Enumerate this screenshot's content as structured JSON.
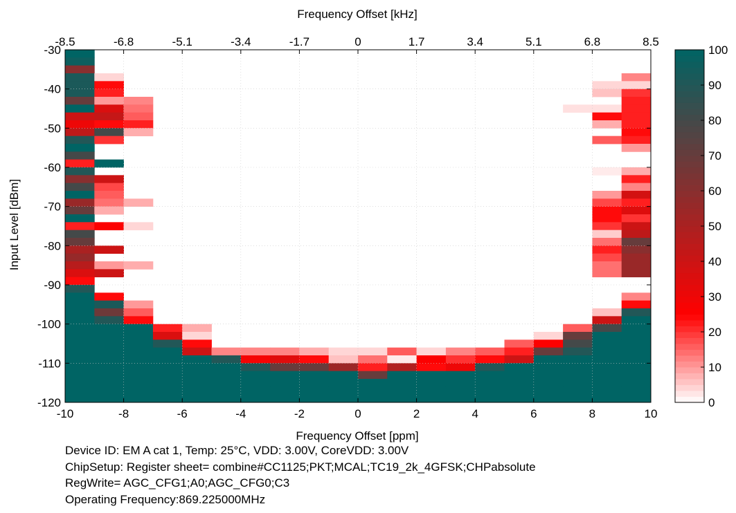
{
  "chart_data": {
    "type": "heatmap",
    "title": "",
    "xlabel": "Frequency Offset [ppm]",
    "x2label": "Frequency Offset [kHz]",
    "ylabel": "Input Level [dBm]",
    "xlim": [
      -10,
      10
    ],
    "ylim": [
      -120,
      -30
    ],
    "x_ticks": [
      -10,
      -8,
      -6,
      -4,
      -2,
      0,
      2,
      4,
      6,
      8,
      10
    ],
    "x2_ticks": [
      "-8.5",
      "-6.8",
      "-5.1",
      "-3.4",
      "-1.7",
      "0",
      "1.7",
      "3.4",
      "5.1",
      "6.8",
      "8.5"
    ],
    "y_ticks": [
      -30,
      -40,
      -50,
      -60,
      -70,
      -80,
      -90,
      -100,
      -110,
      -120
    ],
    "colorbar": {
      "min": 0,
      "max": 100,
      "ticks": [
        0,
        10,
        20,
        30,
        40,
        50,
        60,
        70,
        80,
        90,
        100
      ]
    },
    "x_bins": [
      -9.5,
      -8.5,
      -7.5,
      -6.5,
      -5.5,
      -4.5,
      -3.5,
      -2.5,
      -1.5,
      -0.5,
      0.5,
      1.5,
      2.5,
      3.5,
      4.5,
      5.5,
      6.5,
      7.5,
      8.5,
      9.5
    ],
    "y_bin_top": -30,
    "y_bin_step": 2,
    "z": [
      [
        100,
        0,
        0,
        0,
        0,
        0,
        0,
        0,
        0,
        0,
        0,
        0,
        0,
        0,
        0,
        0,
        0,
        0,
        0,
        0
      ],
      [
        96,
        0,
        0,
        0,
        0,
        0,
        0,
        0,
        0,
        0,
        0,
        0,
        0,
        0,
        0,
        0,
        0,
        0,
        0,
        0
      ],
      [
        60,
        0,
        0,
        0,
        0,
        0,
        0,
        0,
        0,
        0,
        0,
        0,
        0,
        0,
        0,
        0,
        0,
        0,
        0,
        0
      ],
      [
        92,
        4,
        0,
        0,
        0,
        0,
        0,
        0,
        0,
        0,
        0,
        0,
        0,
        0,
        0,
        0,
        0,
        0,
        0,
        12
      ],
      [
        92,
        24,
        0,
        0,
        0,
        0,
        0,
        0,
        0,
        0,
        0,
        0,
        0,
        0,
        0,
        0,
        0,
        0,
        4,
        4
      ],
      [
        92,
        22,
        0,
        0,
        0,
        0,
        0,
        0,
        0,
        0,
        0,
        0,
        0,
        0,
        0,
        0,
        0,
        0,
        6,
        20
      ],
      [
        70,
        10,
        12,
        0,
        0,
        0,
        0,
        0,
        0,
        0,
        0,
        0,
        0,
        0,
        0,
        0,
        0,
        0,
        0,
        22
      ],
      [
        100,
        36,
        14,
        0,
        0,
        0,
        0,
        0,
        0,
        0,
        0,
        0,
        0,
        0,
        0,
        0,
        0,
        3,
        3,
        22
      ],
      [
        40,
        42,
        16,
        0,
        0,
        0,
        0,
        0,
        0,
        0,
        0,
        0,
        0,
        0,
        0,
        0,
        0,
        0,
        24,
        22
      ],
      [
        30,
        24,
        22,
        0,
        0,
        0,
        0,
        0,
        0,
        0,
        0,
        0,
        0,
        0,
        0,
        0,
        0,
        0,
        8,
        22
      ],
      [
        44,
        80,
        8,
        0,
        0,
        0,
        0,
        0,
        0,
        0,
        0,
        0,
        0,
        0,
        0,
        0,
        0,
        0,
        0,
        24
      ],
      [
        90,
        20,
        0,
        0,
        0,
        0,
        0,
        0,
        0,
        0,
        0,
        0,
        0,
        0,
        0,
        0,
        0,
        0,
        16,
        22
      ],
      [
        100,
        0,
        0,
        0,
        0,
        0,
        0,
        0,
        0,
        0,
        0,
        0,
        0,
        0,
        0,
        0,
        0,
        0,
        0,
        10
      ],
      [
        80,
        0,
        0,
        0,
        0,
        0,
        0,
        0,
        0,
        0,
        0,
        0,
        0,
        0,
        0,
        0,
        0,
        0,
        0,
        0
      ],
      [
        22,
        100,
        0,
        0,
        0,
        0,
        0,
        0,
        0,
        0,
        0,
        0,
        0,
        0,
        0,
        0,
        0,
        0,
        0,
        0
      ],
      [
        90,
        0,
        0,
        0,
        0,
        0,
        0,
        0,
        0,
        0,
        0,
        0,
        0,
        0,
        0,
        0,
        0,
        0,
        2,
        8
      ],
      [
        60,
        40,
        0,
        0,
        0,
        0,
        0,
        0,
        0,
        0,
        0,
        0,
        0,
        0,
        0,
        0,
        0,
        0,
        0,
        22
      ],
      [
        80,
        18,
        0,
        0,
        0,
        0,
        0,
        0,
        0,
        0,
        0,
        0,
        0,
        0,
        0,
        0,
        0,
        0,
        0,
        12
      ],
      [
        100,
        16,
        0,
        0,
        0,
        0,
        0,
        0,
        0,
        0,
        0,
        0,
        0,
        0,
        0,
        0,
        0,
        0,
        10,
        38
      ],
      [
        55,
        14,
        8,
        0,
        0,
        0,
        0,
        0,
        0,
        0,
        0,
        0,
        0,
        0,
        0,
        0,
        0,
        0,
        18,
        22
      ],
      [
        70,
        8,
        0,
        0,
        0,
        0,
        0,
        0,
        0,
        0,
        0,
        0,
        0,
        0,
        0,
        0,
        0,
        0,
        24,
        35
      ],
      [
        100,
        0,
        0,
        0,
        0,
        0,
        0,
        0,
        0,
        0,
        0,
        0,
        0,
        0,
        0,
        0,
        0,
        0,
        24,
        20
      ],
      [
        22,
        26,
        4,
        0,
        0,
        0,
        0,
        0,
        0,
        0,
        0,
        0,
        0,
        0,
        0,
        0,
        0,
        0,
        20,
        40
      ],
      [
        80,
        0,
        0,
        0,
        0,
        0,
        0,
        0,
        0,
        0,
        0,
        0,
        0,
        0,
        0,
        0,
        0,
        0,
        5,
        44
      ],
      [
        70,
        0,
        0,
        0,
        0,
        0,
        0,
        0,
        0,
        0,
        0,
        0,
        0,
        0,
        0,
        0,
        0,
        0,
        14,
        70
      ],
      [
        50,
        40,
        0,
        0,
        0,
        0,
        0,
        0,
        0,
        0,
        0,
        0,
        0,
        0,
        0,
        0,
        0,
        0,
        22,
        60
      ],
      [
        56,
        0,
        0,
        0,
        0,
        0,
        0,
        0,
        0,
        0,
        0,
        0,
        0,
        0,
        0,
        0,
        0,
        0,
        18,
        55
      ],
      [
        46,
        10,
        8,
        0,
        0,
        0,
        0,
        0,
        0,
        0,
        0,
        0,
        0,
        0,
        0,
        0,
        0,
        0,
        14,
        55
      ],
      [
        36,
        40,
        0,
        0,
        0,
        0,
        0,
        0,
        0,
        0,
        0,
        0,
        0,
        0,
        0,
        0,
        0,
        0,
        14,
        55
      ],
      [
        24,
        0,
        0,
        0,
        0,
        0,
        0,
        0,
        0,
        0,
        0,
        0,
        0,
        0,
        0,
        0,
        0,
        0,
        0,
        0
      ],
      [
        90,
        0,
        0,
        0,
        0,
        0,
        0,
        0,
        0,
        0,
        0,
        0,
        0,
        0,
        0,
        0,
        0,
        0,
        0,
        0
      ],
      [
        100,
        24,
        0,
        0,
        0,
        0,
        0,
        0,
        0,
        0,
        0,
        0,
        0,
        0,
        0,
        0,
        0,
        0,
        0,
        12
      ],
      [
        100,
        92,
        10,
        0,
        0,
        0,
        0,
        0,
        0,
        0,
        0,
        0,
        0,
        0,
        0,
        0,
        0,
        0,
        0,
        24
      ],
      [
        100,
        68,
        16,
        0,
        0,
        0,
        0,
        0,
        0,
        0,
        0,
        0,
        0,
        0,
        0,
        0,
        0,
        0,
        6,
        90
      ],
      [
        100,
        90,
        24,
        0,
        0,
        0,
        0,
        0,
        0,
        0,
        0,
        0,
        0,
        0,
        0,
        0,
        0,
        0,
        40,
        100
      ],
      [
        100,
        100,
        100,
        22,
        8,
        0,
        0,
        0,
        0,
        0,
        0,
        0,
        0,
        0,
        0,
        0,
        0,
        16,
        80,
        100
      ],
      [
        100,
        100,
        100,
        36,
        4,
        0,
        0,
        0,
        0,
        0,
        0,
        0,
        0,
        0,
        0,
        0,
        4,
        70,
        100,
        100
      ],
      [
        100,
        100,
        100,
        90,
        24,
        0,
        0,
        0,
        0,
        0,
        0,
        0,
        0,
        0,
        0,
        16,
        26,
        80,
        100,
        100
      ],
      [
        100,
        100,
        100,
        100,
        40,
        12,
        12,
        12,
        8,
        4,
        4,
        16,
        4,
        12,
        16,
        22,
        70,
        90,
        100,
        100
      ],
      [
        100,
        100,
        100,
        100,
        100,
        90,
        28,
        34,
        24,
        6,
        14,
        2,
        26,
        20,
        24,
        40,
        100,
        100,
        100,
        100
      ],
      [
        100,
        100,
        100,
        100,
        100,
        100,
        90,
        70,
        70,
        54,
        22,
        48,
        24,
        30,
        90,
        100,
        100,
        100,
        100,
        100
      ],
      [
        100,
        100,
        100,
        100,
        100,
        100,
        100,
        100,
        100,
        100,
        70,
        100,
        100,
        100,
        100,
        100,
        100,
        100,
        100,
        100
      ],
      [
        100,
        100,
        100,
        100,
        100,
        100,
        100,
        100,
        100,
        100,
        100,
        100,
        100,
        100,
        100,
        100,
        100,
        100,
        100,
        100
      ],
      [
        100,
        100,
        100,
        100,
        100,
        100,
        100,
        100,
        100,
        100,
        100,
        100,
        100,
        100,
        100,
        100,
        100,
        100,
        100,
        100
      ],
      [
        100,
        100,
        100,
        100,
        100,
        100,
        100,
        100,
        100,
        100,
        100,
        100,
        100,
        100,
        100,
        100,
        100,
        100,
        100,
        100
      ]
    ]
  },
  "notes": {
    "device": "Device ID: EM A cat 1, Temp: 25°C, VDD: 3.00V, CoreVDD: 3.00V",
    "chip_setup": "ChipSetup: Register sheet= combine#CC1125;PKT;MCAL;TC19_2k_4GFSK;CHPabsolute",
    "reg_write": "RegWrite= AGC_CFG1;A0;AGC_CFG0;C3",
    "frequency": "Operating Frequency:869.225000MHz"
  }
}
